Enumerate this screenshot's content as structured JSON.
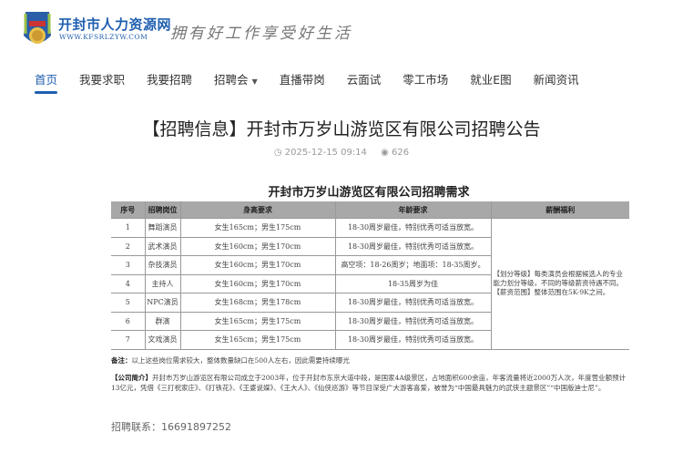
{
  "header": {
    "site_name": "开封市人力资源网",
    "site_url": "WWW.KFSRLZYW.COM",
    "slogan": "拥有好工作享受好生活",
    "colors": {
      "brand": "#1f5fb0"
    }
  },
  "nav": [
    {
      "label": "首页",
      "active": true
    },
    {
      "label": "我要求职"
    },
    {
      "label": "我要招聘"
    },
    {
      "label": "招聘会",
      "dropdown": true
    },
    {
      "label": "直播带岗"
    },
    {
      "label": "云面试"
    },
    {
      "label": "零工市场"
    },
    {
      "label": "就业E图"
    },
    {
      "label": "新闻资讯"
    }
  ],
  "article": {
    "title": "【招聘信息】开封市万岁山游览区有限公司招聘公告",
    "date": "2025-12-15 09:14",
    "views": "626",
    "icons": [
      "clock-icon",
      "eye-icon"
    ]
  },
  "table": {
    "title": "开封市万岁山游览区有限公司招聘需求",
    "headers": [
      "序号",
      "招聘岗位",
      "身高要求",
      "年龄要求",
      "薪酬福利"
    ],
    "rows": [
      [
        "1",
        "舞蹈演员",
        "女生165cm；男生175cm",
        "18-30周岁最佳，特别优秀可适当放宽。"
      ],
      [
        "2",
        "武术演员",
        "女生160cm；男生170cm",
        "18-30周岁最佳，特别优秀可适当放宽。"
      ],
      [
        "3",
        "杂技演员",
        "女生160cm；男生170cm",
        "高空项：18-26周岁；地面项：18-35周岁。"
      ],
      [
        "4",
        "主持人",
        "女生160cm；男生170cm",
        "18-35周岁为佳"
      ],
      [
        "5",
        "NPC演员",
        "女生168cm；男生178cm",
        "18-30周岁最佳，特别优秀可适当放宽。"
      ],
      [
        "6",
        "群演",
        "女生165cm；男生175cm",
        "18-30周岁最佳，特别优秀可适当放宽。"
      ],
      [
        "7",
        "文戏演员",
        "女生165cm；男生175cm",
        "18-30周岁最佳，特别优秀可适当放宽。"
      ]
    ],
    "salary": "【划分等级】每类演员会根据候选人的专业能力划分等级，不同的等级薪资待遇不同。【薪资范围】整体范围在5K-9K之间。"
  },
  "note_label": "备注：",
  "note": "以上这些岗位需求较大，整体数量缺口在500人左右，因此需要持续曝光",
  "intro_label": "【公司简介】",
  "intro": "开封市万岁山游览区有限公司成立于2003年，位于开封市东京大道中段，是国家4A级景区，占地面积600余亩，年客流量将近2000万人次，年度营业额预计13亿元，凭借《三打祝家庄》、《打铁花》、《王婆说媒》、《王大人》、《仙侠巡游》等节目深受广大游客喜爱，被誉为“中国最具魅力的武侠主题景区”“中国版迪士尼”。",
  "contact": "招聘联系：16691897252"
}
